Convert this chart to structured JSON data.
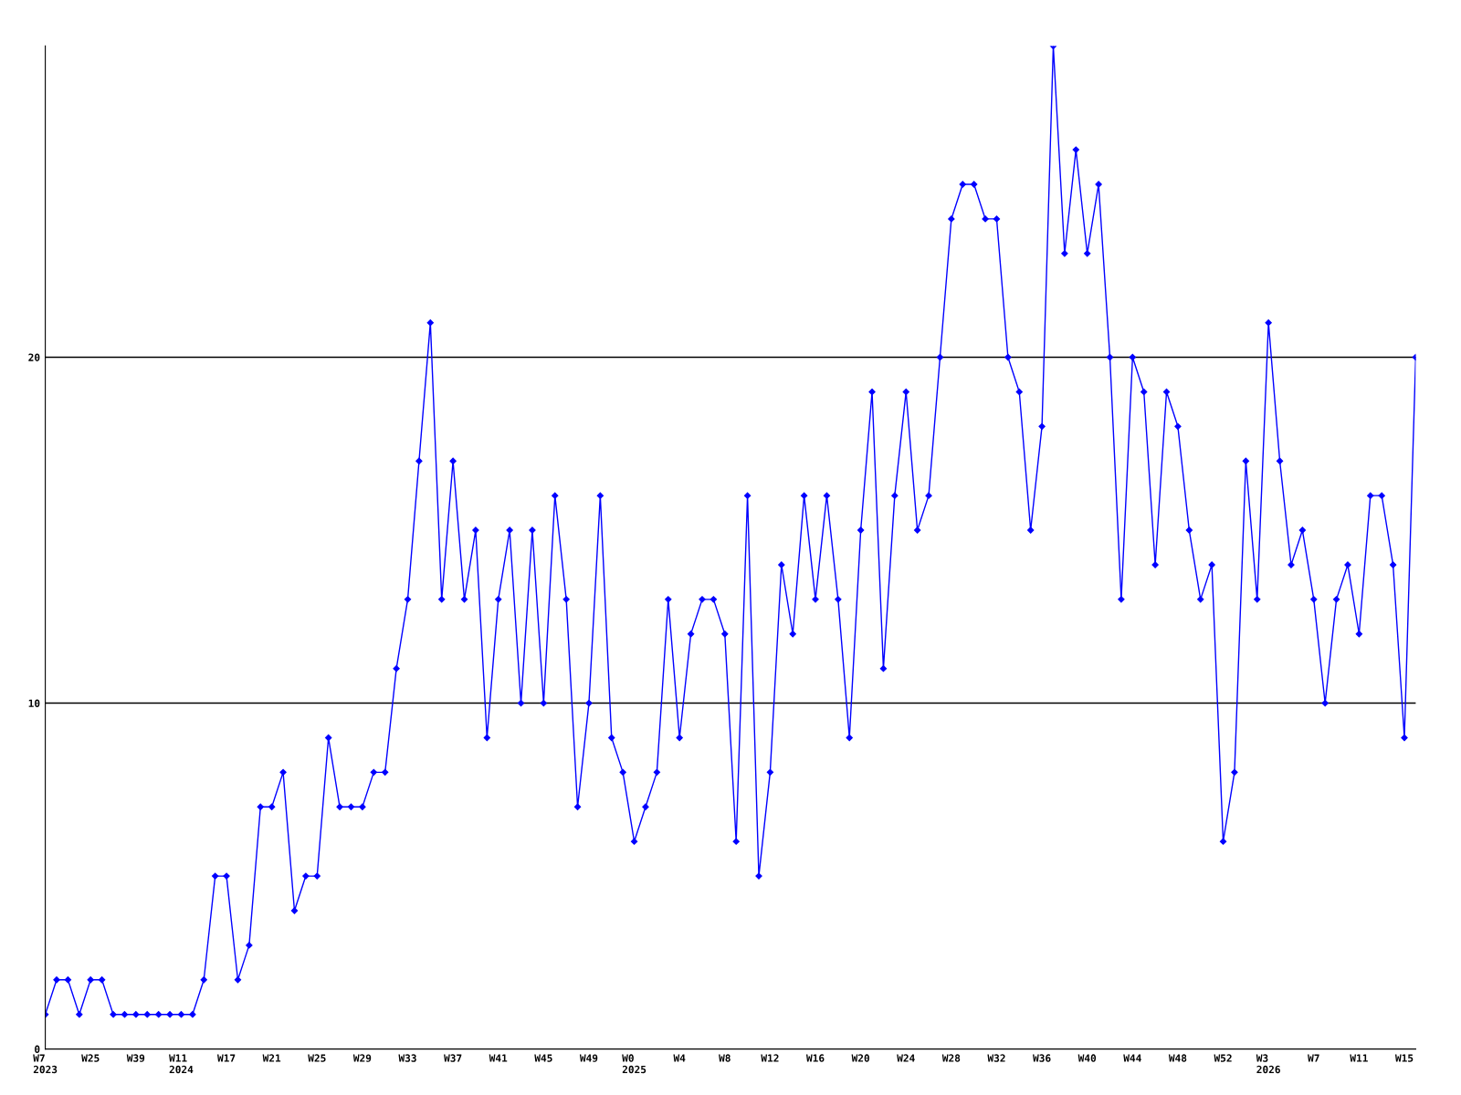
{
  "chart_data": {
    "type": "line",
    "categories": [
      "W7\n2023",
      null,
      null,
      null,
      "W25",
      null,
      null,
      null,
      "W39",
      null,
      null,
      null,
      "W11\n2024",
      null,
      null,
      null,
      "W17",
      null,
      null,
      null,
      "W21",
      null,
      null,
      null,
      "W25",
      null,
      null,
      null,
      "W29",
      null,
      null,
      null,
      "W33",
      null,
      null,
      null,
      "W37",
      null,
      null,
      null,
      "W41",
      null,
      null,
      null,
      "W45",
      null,
      null,
      null,
      "W49",
      null,
      null,
      null,
      "W0\n2025",
      null,
      null,
      null,
      "W4",
      null,
      null,
      null,
      "W8",
      null,
      null,
      null,
      "W12",
      null,
      null,
      null,
      "W16",
      null,
      null,
      null,
      "W20",
      null,
      null,
      null,
      "W24",
      null,
      null,
      null,
      "W28",
      null,
      null,
      null,
      "W32",
      null,
      null,
      null,
      "W36",
      null,
      null,
      null,
      "W40",
      null,
      null,
      null,
      "W44",
      null,
      null,
      null,
      "W48",
      null,
      null,
      null,
      "W52",
      null,
      null,
      null,
      "W3\n2026",
      null,
      null,
      null,
      "W7",
      null,
      null,
      null,
      "W11",
      null,
      null,
      null,
      "W15",
      null
    ],
    "series": [
      {
        "color": "#0000ff",
        "values": [
          1,
          2,
          2,
          1,
          2,
          2,
          1,
          1,
          1,
          1,
          1,
          1,
          1,
          1,
          2,
          5,
          5,
          2,
          3,
          7,
          7,
          8,
          4,
          5,
          5,
          9,
          7,
          7,
          7,
          8,
          8,
          11,
          13,
          17,
          21,
          13,
          17,
          13,
          15,
          9,
          13,
          15,
          10,
          15,
          10,
          16,
          13,
          7,
          10,
          16,
          9,
          8,
          6,
          7,
          8,
          13,
          9,
          12,
          13,
          13,
          12,
          6,
          16,
          5,
          8,
          14,
          12,
          16,
          13,
          16,
          13,
          9,
          15,
          19,
          11,
          16,
          19,
          15,
          16,
          20,
          24,
          25,
          25,
          24,
          24,
          20,
          19,
          15,
          18,
          29,
          23,
          26,
          23,
          25,
          20,
          13,
          20,
          19,
          14,
          19,
          18,
          15,
          13,
          14,
          6,
          8,
          17,
          13,
          21,
          17,
          14,
          15,
          13,
          10,
          13,
          14,
          12,
          16,
          16,
          14,
          9,
          20
        ]
      }
    ],
    "ylim": [
      0,
      29
    ],
    "yticks": [
      0,
      10,
      20
    ],
    "grid": "y",
    "marker": "diamond",
    "line_style": "solid"
  }
}
